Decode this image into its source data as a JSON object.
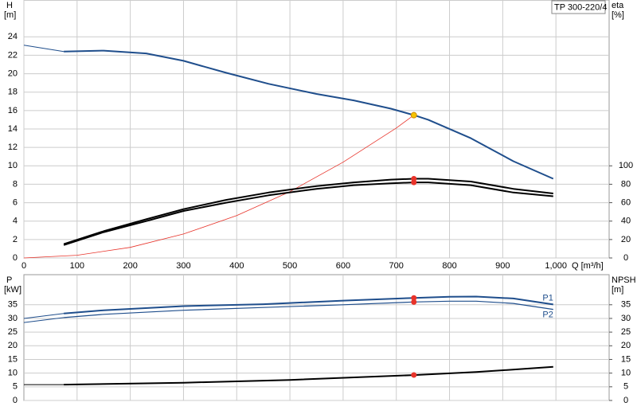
{
  "chart_data": [
    {
      "type": "line",
      "title": "TP 300-220/4",
      "ylabel": "H",
      "yunit": "[m]",
      "y2label": "eta",
      "y2unit": "[%]",
      "xlabel": "Q [m³/h]",
      "xlim": [
        0,
        1100
      ],
      "xticks": [
        0,
        100,
        200,
        300,
        400,
        500,
        600,
        700,
        800,
        900,
        {
          "value": 1000,
          "label": "1,000"
        }
      ],
      "ylim": [
        0,
        28
      ],
      "yticks": [
        0,
        2,
        4,
        6,
        8,
        10,
        12,
        14,
        16,
        18,
        20,
        22,
        24
      ],
      "y2lim": [
        0,
        280
      ],
      "y2ticks": [
        0,
        20,
        40,
        60,
        80,
        100
      ],
      "grid": true,
      "series": [
        {
          "color": "#1f4e8c",
          "width": 1,
          "x": [
            0,
            75
          ],
          "values": [
            23.1,
            22.4
          ]
        },
        {
          "color": "#1f4e8c",
          "width": 2,
          "x": [
            75,
            150,
            230,
            300,
            380,
            460,
            550,
            620,
            690,
            733,
            760,
            840,
            920,
            995
          ],
          "values": [
            22.4,
            22.5,
            22.2,
            21.4,
            20.1,
            18.9,
            17.8,
            17.1,
            16.2,
            15.5,
            15.0,
            13.0,
            10.5,
            8.6
          ]
        },
        {
          "color": "#e8332a",
          "width": 0.8,
          "x": [
            0,
            100,
            200,
            300,
            400,
            500,
            600,
            700,
            733
          ],
          "values": [
            0,
            0.29,
            1.15,
            2.6,
            4.6,
            7.2,
            10.4,
            14.1,
            15.5
          ]
        },
        {
          "color": "#000000",
          "width": 2,
          "axis": "y2",
          "x": [
            75,
            150,
            230,
            300,
            380,
            460,
            550,
            620,
            690,
            733,
            760,
            840,
            920,
            995
          ],
          "values": [
            15,
            29,
            42,
            53,
            63,
            71,
            78,
            82,
            85,
            86,
            86,
            83,
            75,
            70
          ]
        },
        {
          "color": "#000000",
          "width": 2,
          "axis": "y2",
          "x": [
            75,
            150,
            230,
            300,
            380,
            460,
            550,
            620,
            690,
            733,
            760,
            840,
            920,
            995
          ],
          "values": [
            14,
            28,
            40,
            51,
            60,
            68,
            75,
            79,
            81,
            82,
            82,
            79,
            71,
            67
          ]
        },
        {
          "style": "point",
          "color": "#f5c400",
          "x": [
            733
          ],
          "values": [
            15.5
          ]
        },
        {
          "style": "point",
          "color": "#e8332a",
          "axis": "y2",
          "x": [
            733,
            733
          ],
          "values": [
            86,
            82
          ]
        }
      ]
    },
    {
      "type": "line",
      "ylabel": "P",
      "yunit": "[kW]",
      "y2label": "NPSH",
      "y2unit": "[m]",
      "xlim": [
        0,
        1100
      ],
      "xgrid": [
        100,
        200,
        300,
        400,
        500,
        600,
        700,
        800,
        900,
        1000
      ],
      "ylim": [
        0,
        46
      ],
      "yticks": [
        0,
        5,
        10,
        15,
        20,
        25,
        30,
        35
      ],
      "y2lim": [
        0,
        46
      ],
      "y2ticks": [
        0,
        5,
        10,
        15,
        20,
        25,
        30,
        35
      ],
      "grid": true,
      "series": [
        {
          "color": "#1f4e8c",
          "width": 1,
          "x": [
            0,
            75
          ],
          "values": [
            30,
            31.8
          ]
        },
        {
          "name": "P1",
          "label_pos": "above",
          "color": "#1f4e8c",
          "width": 2,
          "x": [
            75,
            150,
            300,
            450,
            600,
            733,
            800,
            850,
            920,
            995
          ],
          "values": [
            31.8,
            33,
            34.5,
            35.2,
            36.5,
            37.5,
            37.9,
            38,
            37.3,
            35.1
          ]
        },
        {
          "color": "#1f4e8c",
          "width": 1,
          "x": [
            0,
            75
          ],
          "values": [
            28.5,
            30.3
          ]
        },
        {
          "name": "P2",
          "label_pos": "below",
          "color": "#1f4e8c",
          "width": 1.2,
          "x": [
            75,
            150,
            300,
            450,
            600,
            733,
            800,
            850,
            920,
            995
          ],
          "values": [
            30.3,
            31.5,
            33,
            34,
            35,
            36,
            36.3,
            36.3,
            35.5,
            33.3
          ]
        },
        {
          "color": "#000000",
          "width": 1,
          "axis": "y2",
          "x": [
            0,
            75
          ],
          "values": [
            5.8,
            5.8
          ]
        },
        {
          "color": "#000000",
          "width": 2,
          "axis": "y2",
          "x": [
            75,
            300,
            500,
            733,
            850,
            995
          ],
          "values": [
            5.8,
            6.5,
            7.5,
            9.3,
            10.4,
            12.3
          ]
        },
        {
          "style": "point",
          "color": "#e8332a",
          "x": [
            733,
            733
          ],
          "values": [
            37.5,
            36
          ]
        },
        {
          "style": "point",
          "color": "#e8332a",
          "axis": "y2",
          "x": [
            733
          ],
          "values": [
            9.3
          ]
        }
      ]
    }
  ]
}
